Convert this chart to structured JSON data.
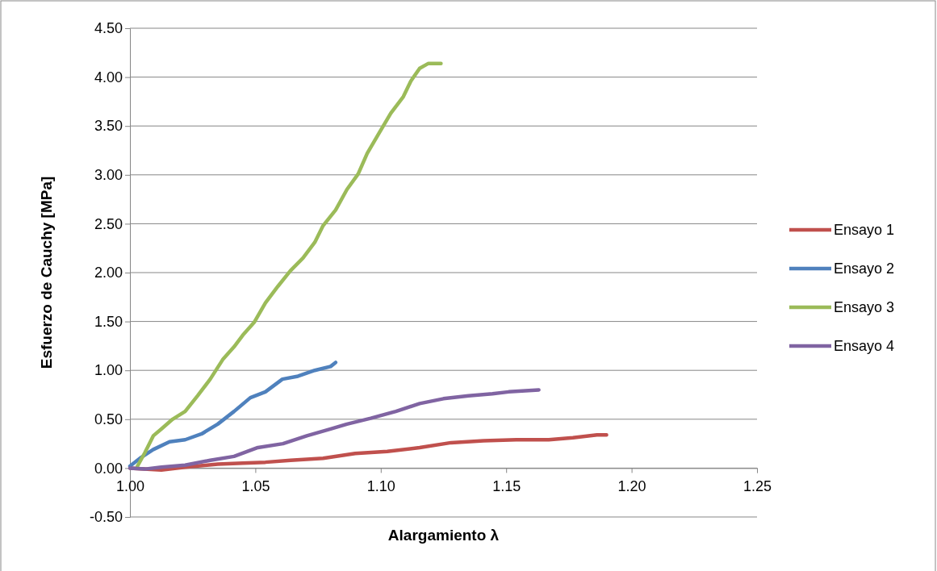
{
  "chart_data": {
    "type": "line",
    "xlabel": "Alargamiento λ",
    "ylabel": "Esfuerzo de Cauchy [MPa]",
    "xlim": [
      1.0,
      1.25
    ],
    "xticks": [
      {
        "value": 1.0,
        "label": "1.00"
      },
      {
        "value": 1.05,
        "label": "1.05"
      },
      {
        "value": 1.1,
        "label": "1.10"
      },
      {
        "value": 1.15,
        "label": "1.15"
      },
      {
        "value": 1.2,
        "label": "1.20"
      },
      {
        "value": 1.25,
        "label": "1.25"
      }
    ],
    "ylim": [
      -0.5,
      4.5
    ],
    "yticks": [
      {
        "value": -0.5,
        "label": "-0.50"
      },
      {
        "value": 0,
        "label": "0.00"
      },
      {
        "value": 0.5,
        "label": "0.50"
      },
      {
        "value": 1,
        "label": "1.00"
      },
      {
        "value": 1.5,
        "label": "1.50"
      },
      {
        "value": 2,
        "label": "2.00"
      },
      {
        "value": 2.5,
        "label": "2.50"
      },
      {
        "value": 3,
        "label": "3.00"
      },
      {
        "value": 3.5,
        "label": "3.50"
      },
      {
        "value": 4,
        "label": "4.00"
      },
      {
        "value": 4.5,
        "label": "4.50"
      }
    ],
    "grid": "y",
    "legend": "right",
    "marker": "none",
    "line_style": "solid",
    "series": [
      {
        "name": "Ensayo 1",
        "color": "#c0504d",
        "x": [
          1.0,
          1.0125,
          1.022,
          1.035,
          1.045,
          1.054,
          1.064,
          1.077,
          1.0898,
          1.1026,
          1.1155,
          1.128,
          1.141,
          1.154,
          1.167,
          1.1766,
          1.1862,
          1.19
        ],
        "values": [
          0.0,
          -0.02,
          0.01,
          0.04,
          0.05,
          0.06,
          0.08,
          0.1,
          0.15,
          0.17,
          0.21,
          0.26,
          0.28,
          0.29,
          0.29,
          0.31,
          0.34,
          0.34
        ]
      },
      {
        "name": "Ensayo 2",
        "color": "#4f81bd",
        "x": [
          1.0,
          1.0045,
          1.0093,
          1.0158,
          1.022,
          1.0286,
          1.035,
          1.0415,
          1.048,
          1.054,
          1.0608,
          1.067,
          1.0737,
          1.08,
          1.082
        ],
        "values": [
          0.02,
          0.11,
          0.19,
          0.27,
          0.29,
          0.35,
          0.45,
          0.58,
          0.72,
          0.78,
          0.91,
          0.94,
          1.0,
          1.04,
          1.08
        ]
      },
      {
        "name": "Ensayo 3",
        "color": "#9bbb59",
        "x": [
          1.003,
          1.006,
          1.0093,
          1.0125,
          1.017,
          1.022,
          1.027,
          1.032,
          1.037,
          1.0415,
          1.045,
          1.0495,
          1.054,
          1.059,
          1.064,
          1.069,
          1.0737,
          1.077,
          1.082,
          1.0865,
          1.091,
          1.0946,
          1.0994,
          1.104,
          1.109,
          1.112,
          1.1155,
          1.119,
          1.124
        ],
        "values": [
          0.02,
          0.16,
          0.33,
          0.4,
          0.5,
          0.58,
          0.74,
          0.91,
          1.11,
          1.24,
          1.36,
          1.49,
          1.69,
          1.86,
          2.02,
          2.15,
          2.31,
          2.48,
          2.64,
          2.85,
          3.01,
          3.22,
          3.43,
          3.63,
          3.8,
          3.96,
          4.09,
          4.14,
          4.14
        ]
      },
      {
        "name": "Ensayo 4",
        "color": "#8064a2",
        "x": [
          1.0,
          1.006,
          1.0125,
          1.022,
          1.032,
          1.0415,
          1.051,
          1.061,
          1.0705,
          1.08,
          1.0865,
          1.096,
          1.106,
          1.1155,
          1.125,
          1.135,
          1.1445,
          1.151,
          1.163
        ],
        "values": [
          0.0,
          -0.01,
          0.01,
          0.03,
          0.08,
          0.12,
          0.21,
          0.25,
          0.33,
          0.4,
          0.45,
          0.51,
          0.58,
          0.66,
          0.71,
          0.74,
          0.76,
          0.78,
          0.8
        ]
      }
    ]
  }
}
